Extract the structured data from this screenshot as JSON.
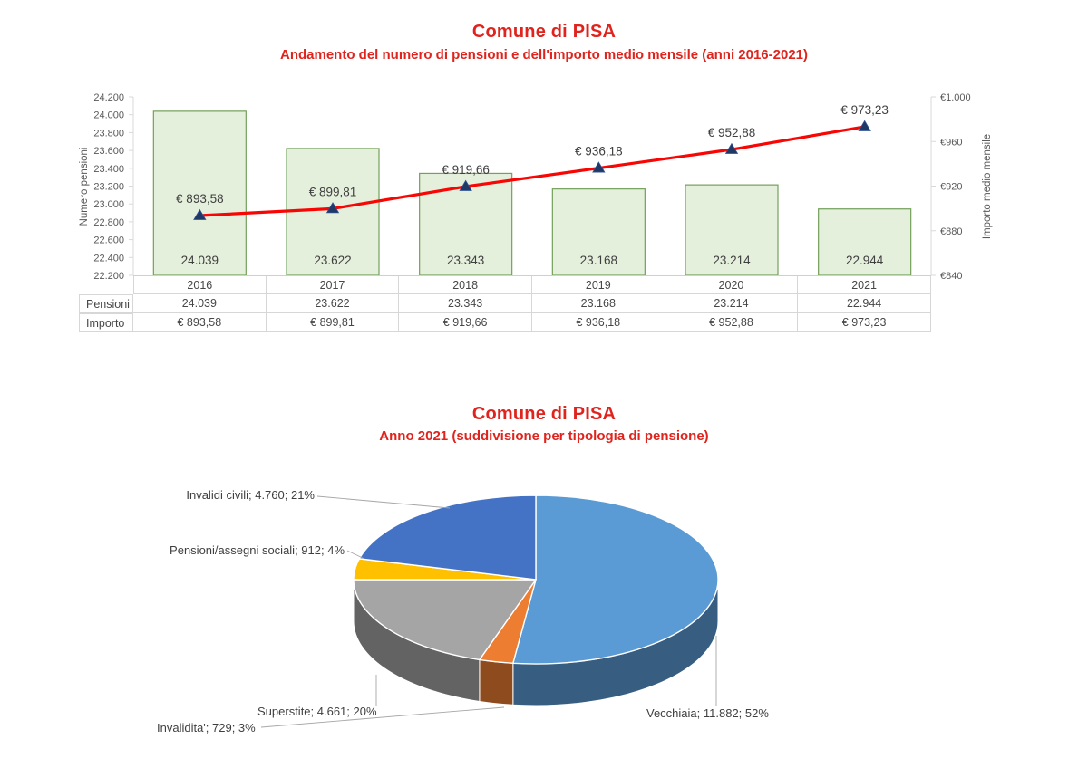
{
  "page": {
    "background": "#FFFFFF",
    "accent_red": "#E0231C"
  },
  "chart_data": [
    {
      "type": "bar",
      "subtype": "combo-bar-line-dual-axis",
      "title": "Comune di PISA",
      "subtitle": "Andamento del numero di pensioni e dell'importo medio mensile (anni 2016-2021)",
      "title_color": "#E0231C",
      "categories": [
        "2016",
        "2017",
        "2018",
        "2019",
        "2020",
        "2021"
      ],
      "series": [
        {
          "name": "Pensioni",
          "type": "bar",
          "axis": "left",
          "values": [
            24039,
            23622,
            23343,
            23168,
            23214,
            22944
          ],
          "labels": [
            "24.039",
            "23.622",
            "23.343",
            "23.168",
            "23.214",
            "22.944"
          ],
          "fill": "#E4EFDC",
          "border": "#73A05A"
        },
        {
          "name": "Importo",
          "type": "line",
          "axis": "right",
          "values": [
            893.58,
            899.81,
            919.66,
            936.18,
            952.88,
            973.23
          ],
          "labels": [
            "€ 893,58",
            "€ 899,81",
            "€ 919,66",
            "€ 936,18",
            "€ 952,88",
            "€ 973,23"
          ],
          "line_color": "#F80604",
          "marker": "triangle",
          "marker_color": "#1F3864"
        }
      ],
      "left_axis": {
        "label": "Numero pensioni",
        "min": 22200,
        "max": 24200,
        "step": 200,
        "ticks": [
          "24.200",
          "24.000",
          "23.800",
          "23.600",
          "23.400",
          "23.200",
          "23.000",
          "22.800",
          "22.600",
          "22.400",
          "22.200"
        ]
      },
      "right_axis": {
        "label": "Importo medio mensile",
        "min": 840,
        "max": 1000,
        "step": 40,
        "ticks": [
          "€1.000",
          "€960",
          "€920",
          "€880",
          "€840"
        ]
      },
      "grid": false,
      "legend": "none",
      "table": {
        "row_headers": [
          "Pensioni",
          "Importo"
        ],
        "rows": [
          [
            "24.039",
            "23.622",
            "23.343",
            "23.168",
            "23.214",
            "22.944"
          ],
          [
            "€ 893,58",
            "€ 899,81",
            "€ 919,66",
            "€ 936,18",
            "€ 952,88",
            "€ 973,23"
          ]
        ]
      }
    },
    {
      "type": "pie",
      "subtype": "pie-3d",
      "title": "Comune di PISA",
      "subtitle": "Anno 2021 (suddivisione per tipologia di pensione)",
      "title_color": "#E0231C",
      "start_angle_deg": 0,
      "direction": "clockwise",
      "legend": "outside-labels-with-leader-lines",
      "slices": [
        {
          "label": "Vecchiaia",
          "value": 11882,
          "pct": 52,
          "display": "Vecchiaia; 11.882; 52%",
          "color": "#5B9BD5"
        },
        {
          "label": "Invalidita'",
          "value": 729,
          "pct": 3,
          "display": "Invalidita'; 729; 3%",
          "color": "#ED7D31"
        },
        {
          "label": "Superstite",
          "value": 4661,
          "pct": 20,
          "display": "Superstite; 4.661; 20%",
          "color": "#A5A5A5"
        },
        {
          "label": "Pensioni/assegni sociali",
          "value": 912,
          "pct": 4,
          "display": "Pensioni/assegni sociali; 912; 4%",
          "color": "#FFC000"
        },
        {
          "label": "Invalidi civili",
          "value": 4760,
          "pct": 21,
          "display": "Invalidi civili; 4.760; 21%",
          "color": "#4472C4"
        }
      ]
    }
  ]
}
